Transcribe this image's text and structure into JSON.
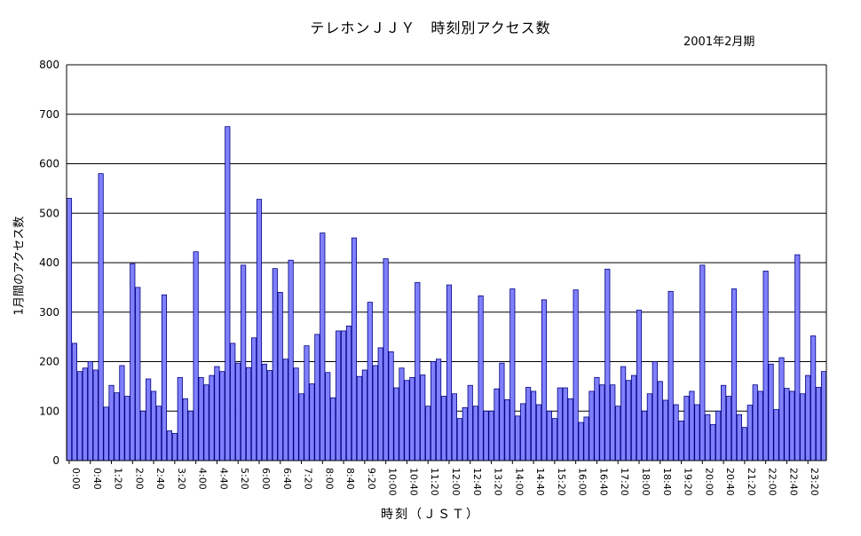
{
  "chart_data": {
    "type": "bar",
    "title": "テレホンＪＪＹ　時刻別アクセス数",
    "subtitle": "2001年2月期",
    "xlabel": "時刻（ＪＳＴ）",
    "ylabel": "1月間のアクセス数",
    "ylim": [
      0,
      800
    ],
    "yticks": [
      0,
      100,
      200,
      300,
      400,
      500,
      600,
      700,
      800
    ],
    "grid": true,
    "bar_color": "#8080ff",
    "bar_edge_color": "#000080",
    "x_tick_labels": [
      "0:00",
      "0:40",
      "1:20",
      "2:00",
      "2:40",
      "3:20",
      "4:00",
      "4:40",
      "5:20",
      "6:00",
      "6:40",
      "7:20",
      "8:00",
      "8:40",
      "9:20",
      "10:00",
      "10:40",
      "11:20",
      "12:00",
      "12:40",
      "13:20",
      "14:00",
      "14:40",
      "15:20",
      "16:00",
      "16:40",
      "17:20",
      "18:00",
      "18:40",
      "19:20",
      "20:00",
      "20:40",
      "21:20",
      "22:00",
      "22:40",
      "23:20"
    ],
    "x_tick_every": 4,
    "interval_minutes": 10,
    "values": [
      530,
      237,
      180,
      187,
      200,
      183,
      580,
      108,
      152,
      137,
      192,
      130,
      398,
      350,
      100,
      165,
      140,
      110,
      335,
      60,
      55,
      168,
      125,
      100,
      422,
      168,
      153,
      172,
      190,
      180,
      675,
      237,
      197,
      395,
      188,
      248,
      528,
      195,
      182,
      388,
      340,
      205,
      405,
      187,
      135,
      232,
      155,
      255,
      460,
      178,
      127,
      262,
      262,
      272,
      450,
      170,
      183,
      320,
      192,
      228,
      408,
      220,
      147,
      187,
      162,
      168,
      360,
      173,
      110,
      200,
      205,
      130,
      355,
      135,
      85,
      107,
      152,
      110,
      333,
      100,
      100,
      145,
      197,
      123,
      347,
      90,
      115,
      148,
      140,
      113,
      325,
      100,
      85,
      147,
      147,
      125,
      345,
      77,
      88,
      140,
      168,
      153,
      387,
      153,
      110,
      190,
      162,
      172,
      304,
      100,
      135,
      200,
      160,
      122,
      342,
      113,
      80,
      130,
      140,
      113,
      395,
      93,
      73,
      100,
      152,
      130,
      347,
      93,
      67,
      112,
      153,
      140,
      383,
      195,
      103,
      208,
      146,
      140,
      416,
      135,
      172,
      252,
      148,
      180
    ]
  }
}
